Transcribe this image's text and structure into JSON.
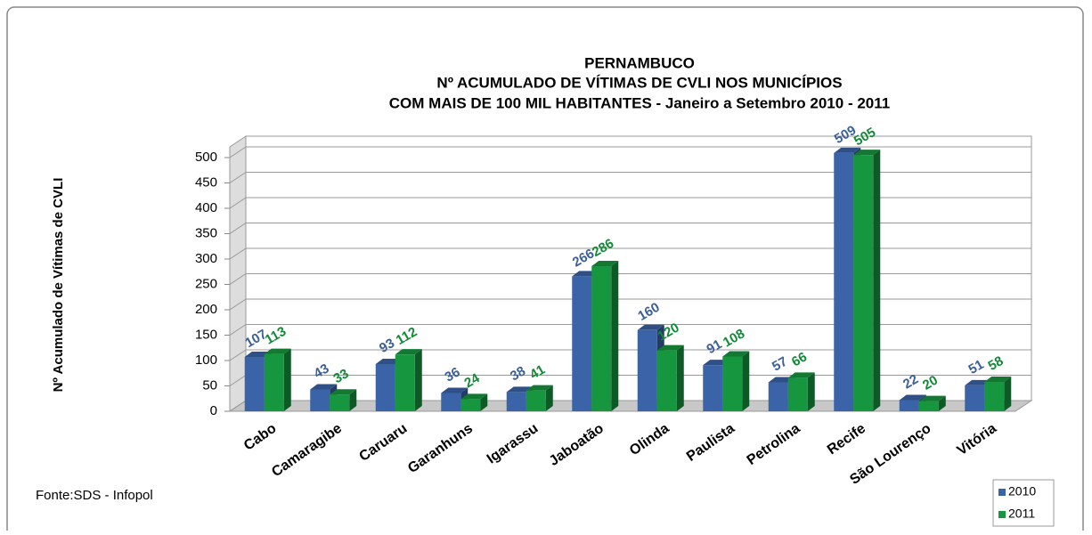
{
  "chart_data": {
    "type": "bar3d",
    "title": [
      "PERNAMBUCO",
      "Nº ACUMULADO DE VÍTIMAS DE CVLI NOS MUNICÍPIOS",
      "COM  MAIS DE 100 MIL HABITANTES - Janeiro a Setembro 2010 - 2011"
    ],
    "y_label": "Nº Acumulado de Vítimas de CVLI",
    "source": "Fonte:SDS - Infopol",
    "categories": [
      "Cabo",
      "Camaragibe",
      "Caruaru",
      "Garanhuns",
      "Igarassu",
      "Jaboatão",
      "Olinda",
      "Paulista",
      "Petrolina",
      "Recife",
      "São Lourenço",
      "Vitória"
    ],
    "series": [
      {
        "name": "2010",
        "color": "#3b64a8",
        "label_color": "#3b5f99",
        "values": [
          107,
          43,
          93,
          36,
          38,
          266,
          160,
          91,
          57,
          509,
          22,
          51
        ]
      },
      {
        "name": "2011",
        "color": "#16963f",
        "label_color": "#118a36",
        "values": [
          113,
          33,
          112,
          24,
          41,
          286,
          120,
          108,
          66,
          505,
          20,
          58
        ]
      }
    ],
    "ylim": [
      0,
      500
    ],
    "yticks": [
      0,
      50,
      100,
      150,
      200,
      250,
      300,
      350,
      400,
      450,
      500
    ],
    "grid": true,
    "legend": "bottom-right"
  }
}
